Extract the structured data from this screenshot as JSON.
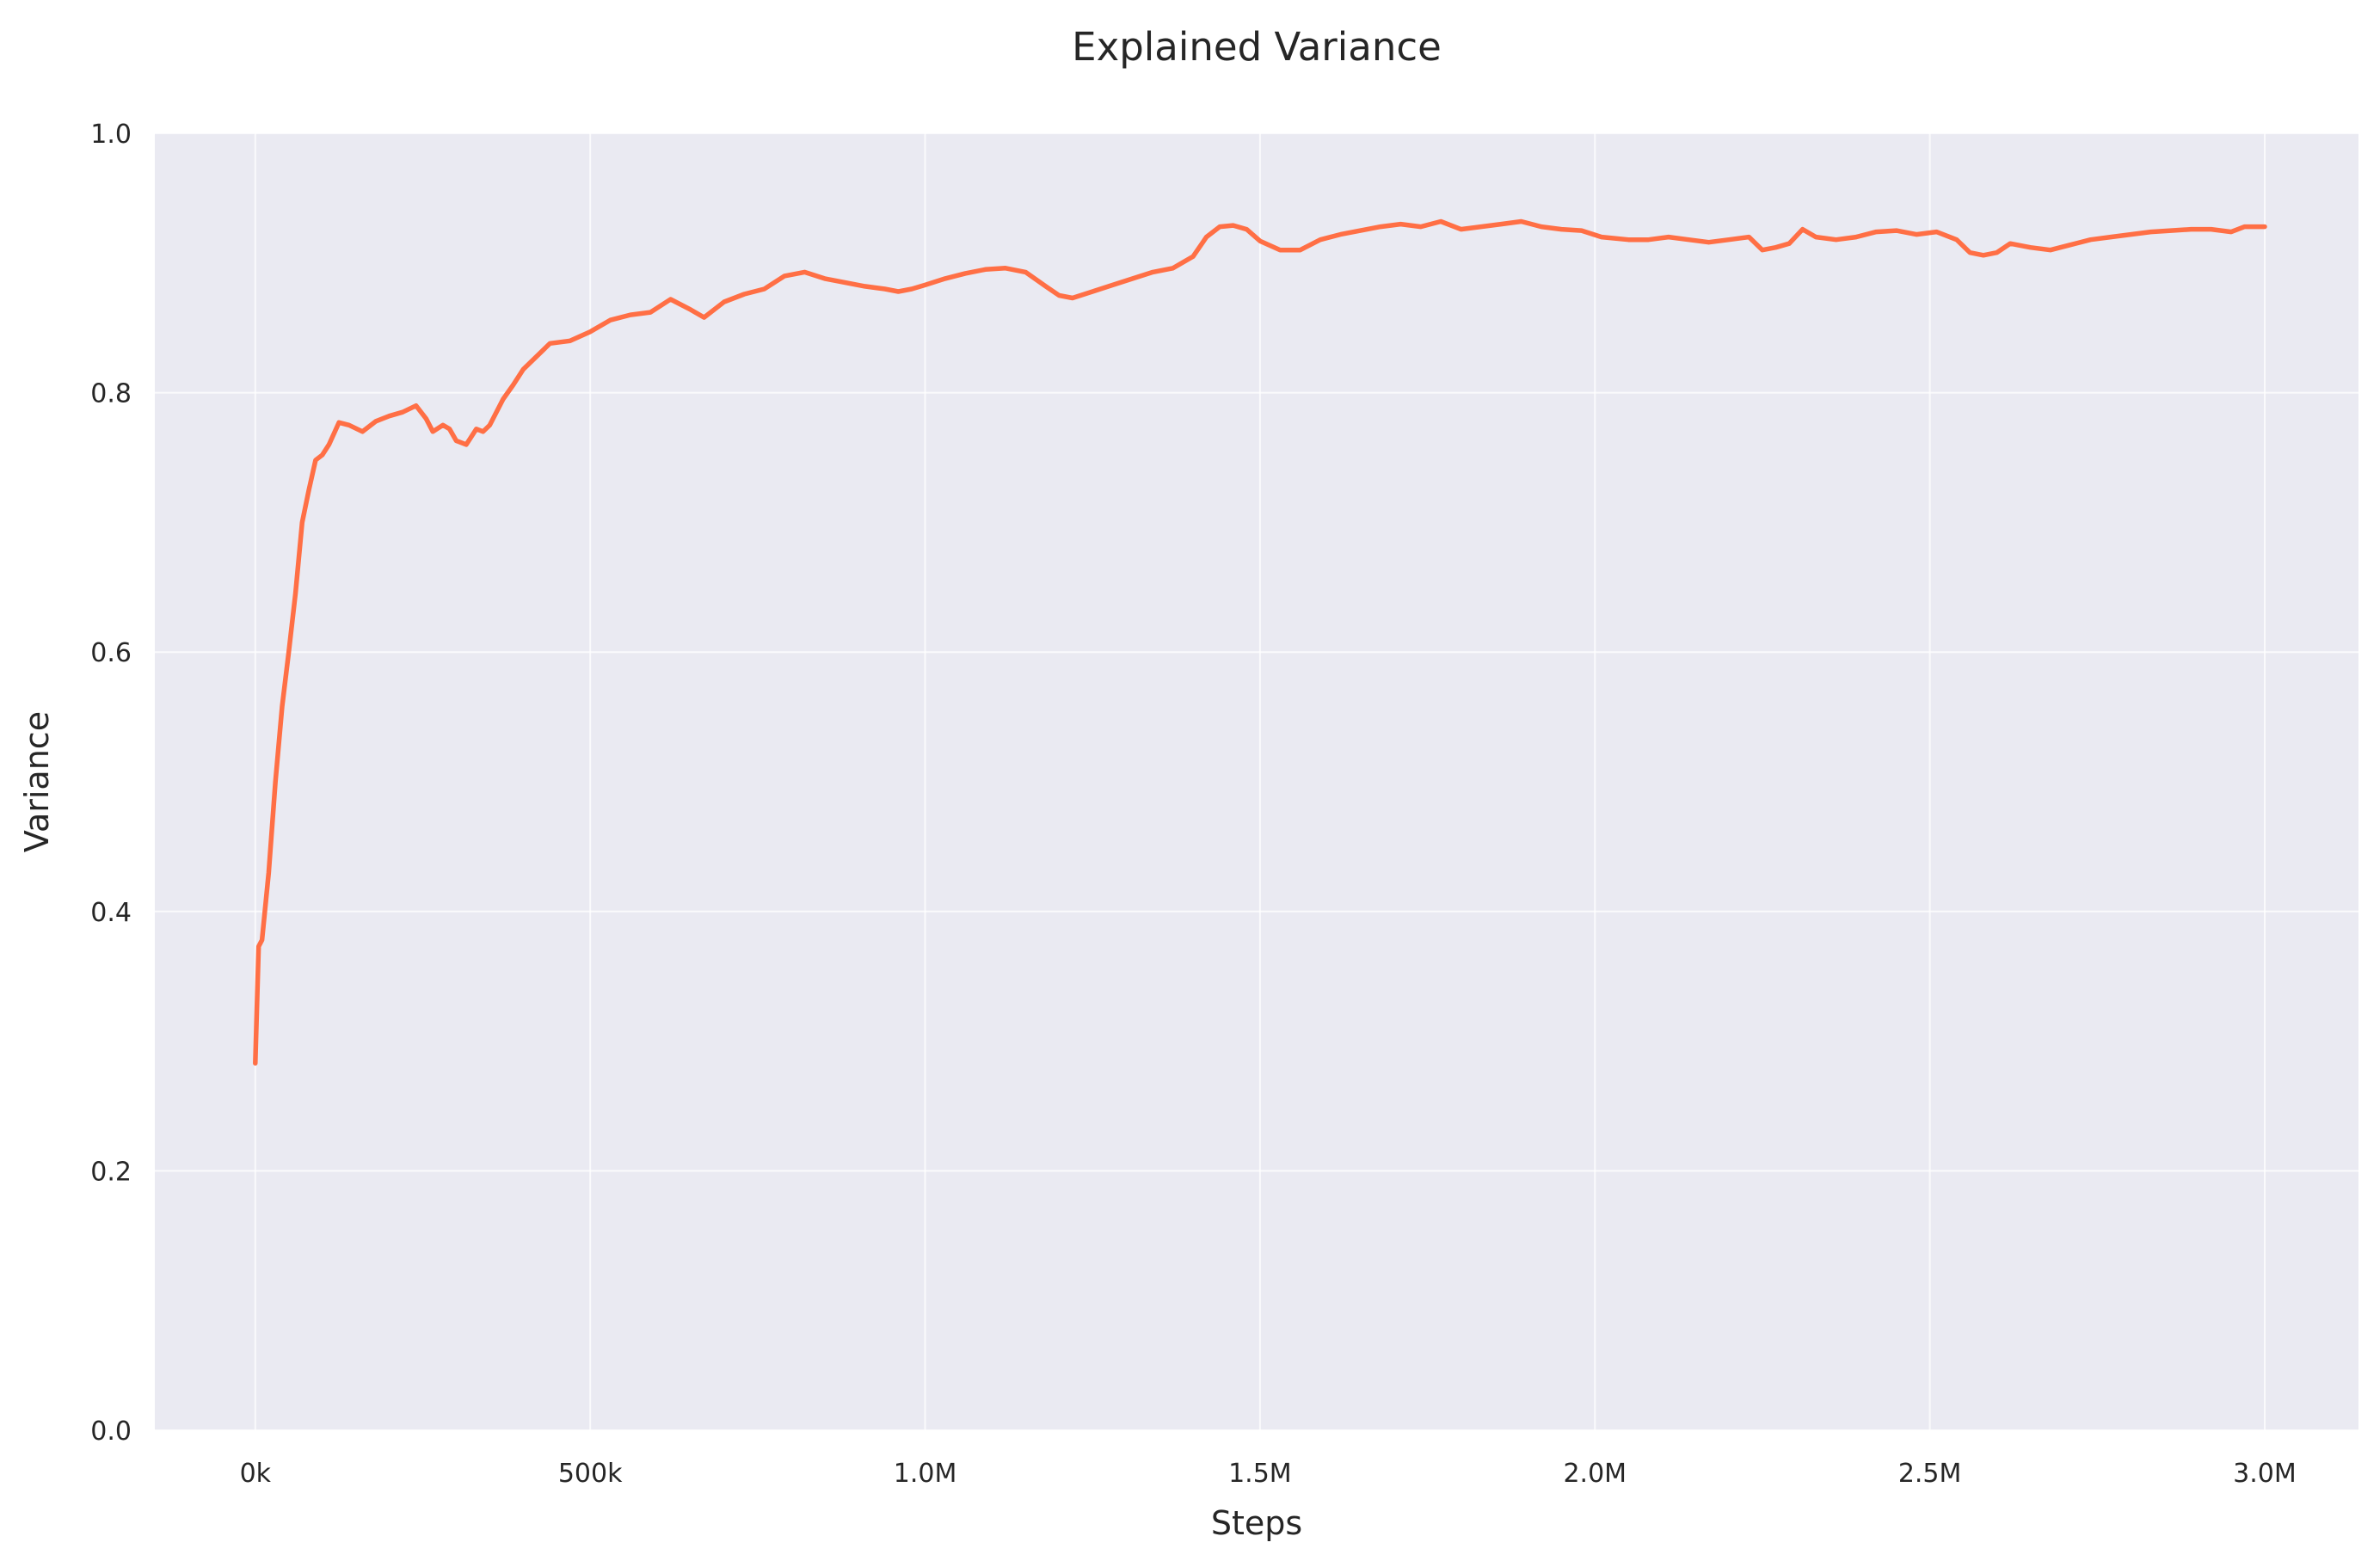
{
  "chart_data": {
    "type": "line",
    "title": "Explained Variance",
    "xlabel": "Steps",
    "ylabel": "Variance",
    "xlim": [
      -150000,
      3140000
    ],
    "ylim": [
      0,
      1.0
    ],
    "xticks": [
      {
        "value": 0,
        "label": "0k"
      },
      {
        "value": 500000,
        "label": "500k"
      },
      {
        "value": 1000000,
        "label": "1.0M"
      },
      {
        "value": 1500000,
        "label": "1.5M"
      },
      {
        "value": 2000000,
        "label": "2.0M"
      },
      {
        "value": 2500000,
        "label": "2.5M"
      },
      {
        "value": 3000000,
        "label": "3.0M"
      }
    ],
    "yticks": [
      {
        "value": 0.0,
        "label": "0.0"
      },
      {
        "value": 0.2,
        "label": "0.2"
      },
      {
        "value": 0.4,
        "label": "0.4"
      },
      {
        "value": 0.6,
        "label": "0.6"
      },
      {
        "value": 0.8,
        "label": "0.8"
      },
      {
        "value": 1.0,
        "label": "1.0"
      }
    ],
    "grid": true,
    "legend": false,
    "colors": {
      "background": "#eaeaf2",
      "grid": "#ffffff",
      "line": "#ff6f45"
    },
    "series": [
      {
        "x": [
          0,
          5000,
          10000,
          20000,
          30000,
          40000,
          50000,
          60000,
          70000,
          80000,
          90000,
          100000,
          110000,
          125000,
          140000,
          160000,
          180000,
          200000,
          220000,
          240000,
          255000,
          265000,
          280000,
          290000,
          300000,
          315000,
          330000,
          340000,
          350000,
          370000,
          385000,
          400000,
          420000,
          440000,
          470000,
          500000,
          530000,
          560000,
          590000,
          620000,
          650000,
          670000,
          700000,
          730000,
          760000,
          790000,
          820000,
          850000,
          880000,
          910000,
          940000,
          960000,
          980000,
          1000000,
          1030000,
          1060000,
          1090000,
          1120000,
          1150000,
          1180000,
          1200000,
          1220000,
          1250000,
          1280000,
          1310000,
          1340000,
          1370000,
          1400000,
          1420000,
          1440000,
          1460000,
          1480000,
          1500000,
          1530000,
          1560000,
          1590000,
          1620000,
          1650000,
          1680000,
          1710000,
          1740000,
          1770000,
          1800000,
          1830000,
          1860000,
          1890000,
          1920000,
          1950000,
          1980000,
          2010000,
          2050000,
          2080000,
          2110000,
          2140000,
          2170000,
          2200000,
          2230000,
          2250000,
          2270000,
          2290000,
          2310000,
          2330000,
          2360000,
          2390000,
          2420000,
          2450000,
          2480000,
          2510000,
          2540000,
          2560000,
          2580000,
          2600000,
          2620000,
          2650000,
          2680000,
          2710000,
          2740000,
          2770000,
          2800000,
          2830000,
          2860000,
          2890000,
          2920000,
          2950000,
          2970000,
          3000000
        ],
        "y": [
          0.283,
          0.373,
          0.378,
          0.43,
          0.5,
          0.558,
          0.6,
          0.645,
          0.7,
          0.725,
          0.748,
          0.752,
          0.76,
          0.777,
          0.775,
          0.77,
          0.778,
          0.782,
          0.785,
          0.79,
          0.78,
          0.77,
          0.775,
          0.772,
          0.763,
          0.76,
          0.772,
          0.77,
          0.775,
          0.795,
          0.806,
          0.818,
          0.828,
          0.838,
          0.84,
          0.847,
          0.856,
          0.86,
          0.862,
          0.872,
          0.864,
          0.858,
          0.87,
          0.876,
          0.88,
          0.89,
          0.893,
          0.888,
          0.885,
          0.882,
          0.88,
          0.878,
          0.88,
          0.883,
          0.888,
          0.892,
          0.895,
          0.896,
          0.893,
          0.882,
          0.875,
          0.873,
          0.878,
          0.883,
          0.888,
          0.893,
          0.896,
          0.905,
          0.92,
          0.928,
          0.929,
          0.926,
          0.917,
          0.91,
          0.91,
          0.918,
          0.922,
          0.925,
          0.928,
          0.93,
          0.928,
          0.932,
          0.926,
          0.928,
          0.93,
          0.932,
          0.928,
          0.926,
          0.925,
          0.92,
          0.918,
          0.918,
          0.92,
          0.918,
          0.916,
          0.918,
          0.92,
          0.91,
          0.912,
          0.915,
          0.926,
          0.92,
          0.918,
          0.92,
          0.924,
          0.925,
          0.922,
          0.924,
          0.918,
          0.908,
          0.906,
          0.908,
          0.915,
          0.912,
          0.91,
          0.914,
          0.918,
          0.92,
          0.922,
          0.924,
          0.925,
          0.926,
          0.926,
          0.924,
          0.928,
          0.928
        ]
      }
    ]
  }
}
